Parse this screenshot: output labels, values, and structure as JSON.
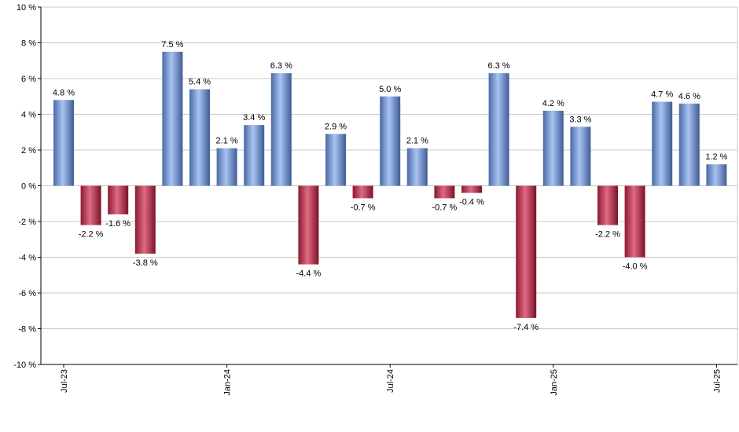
{
  "chart_data": {
    "type": "bar",
    "title": "",
    "xlabel": "",
    "ylabel": "",
    "ylim": [
      -10,
      10
    ],
    "y_ticks": [
      10,
      8,
      6,
      4,
      2,
      0,
      -2,
      -4,
      -6,
      -8,
      -10
    ],
    "y_tick_labels": [
      "10 %",
      "8 %",
      "6 %",
      "4 %",
      "2 %",
      "0 %",
      "-2 %",
      "-4 %",
      "-6 %",
      "-8 %",
      "-10 %"
    ],
    "grid": true,
    "x_tick_labels": [
      {
        "label": "Jul-23",
        "bar_index": 0
      },
      {
        "label": "Jan-24",
        "bar_index": 6
      },
      {
        "label": "Jul-24",
        "bar_index": 12
      },
      {
        "label": "Jan-25",
        "bar_index": 18
      },
      {
        "label": "Jul-25",
        "bar_index": 24
      }
    ],
    "categories": [
      "Jul-23",
      "Aug-23",
      "Sep-23",
      "Oct-23",
      "Nov-23",
      "Dec-23",
      "Jan-24",
      "Feb-24",
      "Mar-24",
      "Apr-24",
      "May-24",
      "Jun-24",
      "Jul-24",
      "Aug-24",
      "Sep-24",
      "Oct-24",
      "Nov-24",
      "Dec-24",
      "Jan-25",
      "Feb-25",
      "Mar-25",
      "Apr-25",
      "May-25",
      "Jun-25",
      "Jul-25"
    ],
    "values": [
      4.8,
      -2.2,
      -1.6,
      -3.8,
      7.5,
      5.4,
      2.1,
      3.4,
      6.3,
      -4.4,
      2.9,
      -0.7,
      5.0,
      2.1,
      -0.7,
      -0.4,
      6.3,
      -7.4,
      4.2,
      3.3,
      -2.2,
      -4.0,
      4.7,
      4.6,
      1.2
    ],
    "value_labels": [
      "4.8 %",
      "-2.2 %",
      "-1.6 %",
      "-3.8 %",
      "7.5 %",
      "5.4 %",
      "2.1 %",
      "3.4 %",
      "6.3 %",
      "-4.4 %",
      "2.9 %",
      "-0.7 %",
      "5.0 %",
      "2.1 %",
      "-0.7 %",
      "-0.4 %",
      "6.3 %",
      "-7.4 %",
      "4.2 %",
      "3.3 %",
      "-2.2 %",
      "-4.0 %",
      "4.7 %",
      "4.6 %",
      "1.2 %"
    ],
    "colors": {
      "positive": "#7f9fe0",
      "positive_dark": "#4a69a6",
      "negative": "#c8304e",
      "negative_dark": "#8a1a30",
      "grid": "#c8c8c8",
      "axis": "#000000"
    }
  }
}
